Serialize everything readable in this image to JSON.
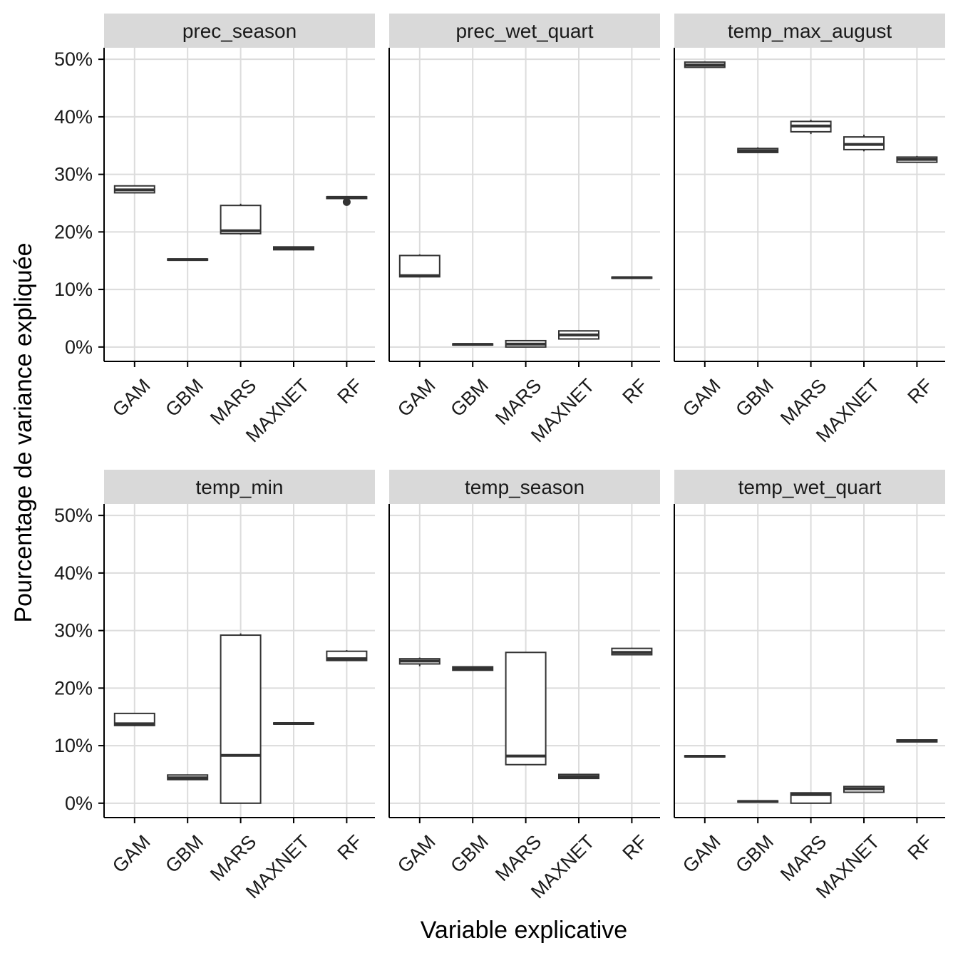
{
  "chart_data": {
    "type": "boxplot",
    "xlabel": "Variable explicative",
    "ylabel": "Pourcentage de variance expliquée",
    "ylim": [
      -2.5,
      52
    ],
    "yticks": [
      0,
      10,
      20,
      30,
      40,
      50
    ],
    "ytick_labels": [
      "0%",
      "10%",
      "20%",
      "30%",
      "40%",
      "50%"
    ],
    "categories": [
      "GAM",
      "GBM",
      "MARS",
      "MAXNET",
      "RF"
    ],
    "grid": true,
    "panels": [
      {
        "name": "prec_season",
        "boxes": [
          {
            "category": "GAM",
            "min": 26.7,
            "q1": 26.8,
            "median": 27.3,
            "q3": 28.0,
            "max": 28.1,
            "outliers": []
          },
          {
            "category": "GBM",
            "min": 15.1,
            "q1": 15.1,
            "median": 15.2,
            "q3": 15.3,
            "max": 15.3,
            "outliers": []
          },
          {
            "category": "MARS",
            "min": 19.5,
            "q1": 19.7,
            "median": 20.2,
            "q3": 24.6,
            "max": 24.9,
            "outliers": []
          },
          {
            "category": "MAXNET",
            "min": 16.8,
            "q1": 16.9,
            "median": 17.1,
            "q3": 17.4,
            "max": 17.5,
            "outliers": []
          },
          {
            "category": "RF",
            "min": 25.7,
            "q1": 25.8,
            "median": 26.0,
            "q3": 26.1,
            "max": 26.2,
            "outliers": [
              25.2
            ]
          }
        ]
      },
      {
        "name": "prec_wet_quart",
        "boxes": [
          {
            "category": "GAM",
            "min": 12.1,
            "q1": 12.2,
            "median": 12.4,
            "q3": 15.9,
            "max": 16.1,
            "outliers": []
          },
          {
            "category": "GBM",
            "min": 0.3,
            "q1": 0.35,
            "median": 0.45,
            "q3": 0.55,
            "max": 0.6,
            "outliers": []
          },
          {
            "category": "MARS",
            "min": 0.0,
            "q1": 0.0,
            "median": 0.5,
            "q3": 1.1,
            "max": 1.2,
            "outliers": []
          },
          {
            "category": "MAXNET",
            "min": 1.3,
            "q1": 1.4,
            "median": 2.1,
            "q3": 2.8,
            "max": 2.9,
            "outliers": []
          },
          {
            "category": "RF",
            "min": 11.9,
            "q1": 11.95,
            "median": 12.05,
            "q3": 12.15,
            "max": 12.2,
            "outliers": []
          }
        ]
      },
      {
        "name": "temp_max_august",
        "boxes": [
          {
            "category": "GAM",
            "min": 48.5,
            "q1": 48.6,
            "median": 49.0,
            "q3": 49.5,
            "max": 49.6,
            "outliers": []
          },
          {
            "category": "GBM",
            "min": 33.7,
            "q1": 33.8,
            "median": 34.1,
            "q3": 34.5,
            "max": 34.7,
            "outliers": []
          },
          {
            "category": "MARS",
            "min": 37.0,
            "q1": 37.4,
            "median": 38.4,
            "q3": 39.2,
            "max": 39.5,
            "outliers": []
          },
          {
            "category": "MAXNET",
            "min": 34.0,
            "q1": 34.3,
            "median": 35.2,
            "q3": 36.5,
            "max": 36.9,
            "outliers": []
          },
          {
            "category": "RF",
            "min": 32.0,
            "q1": 32.1,
            "median": 32.6,
            "q3": 33.0,
            "max": 33.2,
            "outliers": []
          }
        ]
      },
      {
        "name": "temp_min",
        "boxes": [
          {
            "category": "GAM",
            "min": 13.4,
            "q1": 13.5,
            "median": 13.8,
            "q3": 15.6,
            "max": 15.7,
            "outliers": []
          },
          {
            "category": "GBM",
            "min": 4.0,
            "q1": 4.1,
            "median": 4.4,
            "q3": 4.9,
            "max": 5.0,
            "outliers": []
          },
          {
            "category": "MARS",
            "min": 0.0,
            "q1": 0.0,
            "median": 8.3,
            "q3": 29.2,
            "max": 29.5,
            "outliers": []
          },
          {
            "category": "MAXNET",
            "min": 13.7,
            "q1": 13.75,
            "median": 13.85,
            "q3": 13.95,
            "max": 14.0,
            "outliers": []
          },
          {
            "category": "RF",
            "min": 24.7,
            "q1": 24.8,
            "median": 25.1,
            "q3": 26.4,
            "max": 26.6,
            "outliers": []
          }
        ]
      },
      {
        "name": "temp_season",
        "boxes": [
          {
            "category": "GAM",
            "min": 23.8,
            "q1": 24.2,
            "median": 24.7,
            "q3": 25.1,
            "max": 25.3,
            "outliers": []
          },
          {
            "category": "GBM",
            "min": 23.0,
            "q1": 23.1,
            "median": 23.4,
            "q3": 23.7,
            "max": 23.8,
            "outliers": []
          },
          {
            "category": "MARS",
            "min": 6.6,
            "q1": 6.7,
            "median": 8.2,
            "q3": 26.2,
            "max": 26.3,
            "outliers": []
          },
          {
            "category": "MAXNET",
            "min": 4.2,
            "q1": 4.3,
            "median": 4.6,
            "q3": 5.0,
            "max": 5.1,
            "outliers": []
          },
          {
            "category": "RF",
            "min": 25.7,
            "q1": 25.8,
            "median": 26.2,
            "q3": 26.9,
            "max": 27.0,
            "outliers": []
          }
        ]
      },
      {
        "name": "temp_wet_quart",
        "boxes": [
          {
            "category": "GAM",
            "min": 8.0,
            "q1": 8.05,
            "median": 8.15,
            "q3": 8.25,
            "max": 8.3,
            "outliers": []
          },
          {
            "category": "GBM",
            "min": 0.15,
            "q1": 0.2,
            "median": 0.3,
            "q3": 0.4,
            "max": 0.45,
            "outliers": []
          },
          {
            "category": "MARS",
            "min": 0.0,
            "q1": 0.0,
            "median": 1.5,
            "q3": 1.8,
            "max": 1.9,
            "outliers": []
          },
          {
            "category": "MAXNET",
            "min": 1.8,
            "q1": 1.9,
            "median": 2.5,
            "q3": 2.9,
            "max": 3.0,
            "outliers": []
          },
          {
            "category": "RF",
            "min": 10.6,
            "q1": 10.65,
            "median": 10.85,
            "q3": 11.0,
            "max": 11.1,
            "outliers": []
          }
        ]
      }
    ],
    "colors": {
      "strip_fill": "#d9d9d9",
      "grid": "#dcdcdc",
      "box_stroke": "#333333",
      "box_fill": "#ffffff",
      "axis": "#000000"
    }
  }
}
